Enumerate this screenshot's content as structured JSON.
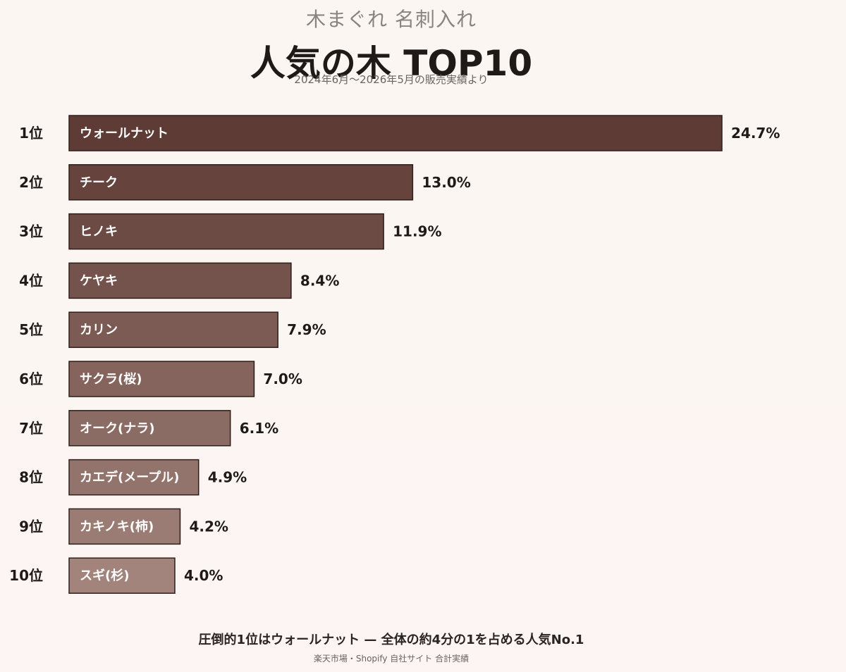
{
  "header": {
    "category": "木まぐれ 名刺入れ",
    "title": "人気の木 TOP10",
    "period": "2024年6月〜2026年5月の販売実績より"
  },
  "chart_data": {
    "type": "bar",
    "orientation": "horizontal",
    "title": "人気の木 TOP10",
    "unit": "%",
    "ranks": [
      "1位",
      "2位",
      "3位",
      "4位",
      "5位",
      "6位",
      "7位",
      "8位",
      "9位",
      "10位"
    ],
    "categories": [
      "ウォールナット",
      "チーク",
      "ヒノキ",
      "ケヤキ",
      "カリン",
      "サクラ(桜)",
      "オーク(ナラ)",
      "カエデ(メープル)",
      "カキノキ(柿)",
      "スギ(杉)"
    ],
    "values": [
      24.7,
      13.0,
      11.9,
      8.4,
      7.9,
      7.0,
      6.1,
      4.9,
      4.2,
      4.0
    ],
    "value_labels": [
      "24.7%",
      "13.0%",
      "11.9%",
      "8.4%",
      "7.9%",
      "7.0%",
      "6.1%",
      "4.9%",
      "4.2%",
      "4.0%"
    ],
    "xlim": [
      0,
      24.7
    ],
    "grid": false,
    "legend": "none",
    "colors": {
      "start": "#5e3b35",
      "end": "#a2847c",
      "outline": "#2e1e1a"
    }
  },
  "footer": {
    "note": "圧倒的1位はウォールナット — 全体の約4分の1を占める人気No.1",
    "source": "楽天市場・Shopify 自社サイト 合計実績"
  }
}
